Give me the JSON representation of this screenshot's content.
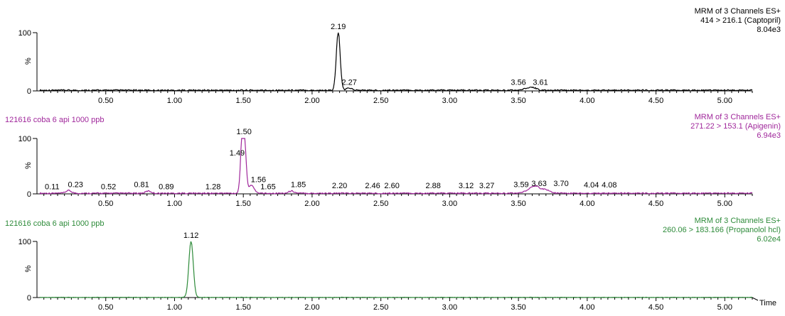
{
  "chart_data": [
    {
      "type": "line",
      "sample_label": "",
      "header": [
        "MRM of 3 Channels ES+",
        "414 > 216.1 (Captopril)",
        "8.04e3"
      ],
      "ylabel": "%",
      "y_ticks": [
        "100",
        "0"
      ],
      "ylim": [
        0,
        100
      ],
      "xlim": [
        0,
        5.2
      ],
      "x_ticks": [
        "0.50",
        "1.00",
        "1.50",
        "2.00",
        "2.50",
        "3.00",
        "3.50",
        "4.00",
        "4.50",
        "5.00"
      ],
      "color": "#000000",
      "peaks": [
        {
          "x": 2.19,
          "y": 100,
          "w": 0.014
        },
        {
          "x": 2.27,
          "y": 4,
          "w": 0.02
        },
        {
          "x": 3.56,
          "y": 3,
          "w": 0.025
        },
        {
          "x": 3.61,
          "y": 4,
          "w": 0.025
        }
      ],
      "annotations": [
        {
          "label": "2.19",
          "x": 2.19,
          "y": 100
        },
        {
          "label": "2.27",
          "x": 2.27,
          "y": 4
        },
        {
          "label": "3.56",
          "x": 3.5,
          "y": 4
        },
        {
          "label": "3.61",
          "x": 3.66,
          "y": 4
        }
      ]
    },
    {
      "type": "line",
      "sample_label": "121616 coba 6 api 1000 ppb",
      "header": [
        "MRM of 3 Channels ES+",
        "271.22 > 153.1 (Apigenin)",
        "6.94e3"
      ],
      "ylabel": "%",
      "y_ticks": [
        "100",
        "0"
      ],
      "ylim": [
        0,
        100
      ],
      "xlim": [
        0,
        5.2
      ],
      "x_ticks": [
        "0.50",
        "1.00",
        "1.50",
        "2.00",
        "2.50",
        "3.00",
        "3.50",
        "4.00",
        "4.50",
        "5.00"
      ],
      "color": "#a0279b",
      "peaks": [
        {
          "x": 1.49,
          "y": 62,
          "w": 0.012
        },
        {
          "x": 1.505,
          "y": 100,
          "w": 0.014
        },
        {
          "x": 1.56,
          "y": 14,
          "w": 0.02
        },
        {
          "x": 0.23,
          "y": 5,
          "w": 0.02
        },
        {
          "x": 0.81,
          "y": 4,
          "w": 0.02
        },
        {
          "x": 1.85,
          "y": 4,
          "w": 0.02
        },
        {
          "x": 3.59,
          "y": 6,
          "w": 0.04
        },
        {
          "x": 3.63,
          "y": 9,
          "w": 0.03
        },
        {
          "x": 3.7,
          "y": 6,
          "w": 0.03
        }
      ],
      "annotations": [
        {
          "label": "0.11",
          "x": 0.11,
          "y": 2
        },
        {
          "label": "0.23",
          "x": 0.28,
          "y": 6
        },
        {
          "label": "0.52",
          "x": 0.52,
          "y": 2
        },
        {
          "label": "0.81",
          "x": 0.76,
          "y": 6
        },
        {
          "label": "0.89",
          "x": 0.94,
          "y": 2
        },
        {
          "label": "1.28",
          "x": 1.28,
          "y": 2
        },
        {
          "label": "1.49",
          "x": 1.455,
          "y": 63
        },
        {
          "label": "1.50",
          "x": 1.505,
          "y": 101
        },
        {
          "label": "1.56",
          "x": 1.61,
          "y": 15
        },
        {
          "label": "1.65",
          "x": 1.68,
          "y": 2
        },
        {
          "label": "1.85",
          "x": 1.9,
          "y": 6
        },
        {
          "label": "2.20",
          "x": 2.2,
          "y": 4
        },
        {
          "label": "2.46",
          "x": 2.44,
          "y": 4
        },
        {
          "label": "2.60",
          "x": 2.58,
          "y": 4
        },
        {
          "label": "2.88",
          "x": 2.88,
          "y": 4
        },
        {
          "label": "3.12",
          "x": 3.12,
          "y": 4
        },
        {
          "label": "3.27",
          "x": 3.27,
          "y": 4
        },
        {
          "label": "3.59",
          "x": 3.52,
          "y": 6
        },
        {
          "label": "3.63",
          "x": 3.65,
          "y": 8
        },
        {
          "label": "3.70",
          "x": 3.81,
          "y": 8
        },
        {
          "label": "4.04",
          "x": 4.03,
          "y": 5
        },
        {
          "label": "4.08",
          "x": 4.16,
          "y": 5
        }
      ]
    },
    {
      "type": "line",
      "sample_label": "121616 coba 6 api 1000 ppb",
      "header": [
        "MRM of 3 Channels ES+",
        "260.06 > 183.166 (Propanolol hcl)",
        "6.02e4"
      ],
      "ylabel": "%",
      "y_ticks": [
        "100",
        "0"
      ],
      "ylim": [
        0,
        100
      ],
      "xlim": [
        0,
        5.2
      ],
      "x_ticks": [
        "0.50",
        "1.00",
        "1.50",
        "2.00",
        "2.50",
        "3.00",
        "3.50",
        "4.00",
        "4.50",
        "5.00"
      ],
      "xlabel": "Time",
      "color": "#2e8b3a",
      "peaks": [
        {
          "x": 1.12,
          "y": 100,
          "w": 0.016
        }
      ],
      "annotations": [
        {
          "label": "1.12",
          "x": 1.12,
          "y": 100
        }
      ]
    }
  ]
}
